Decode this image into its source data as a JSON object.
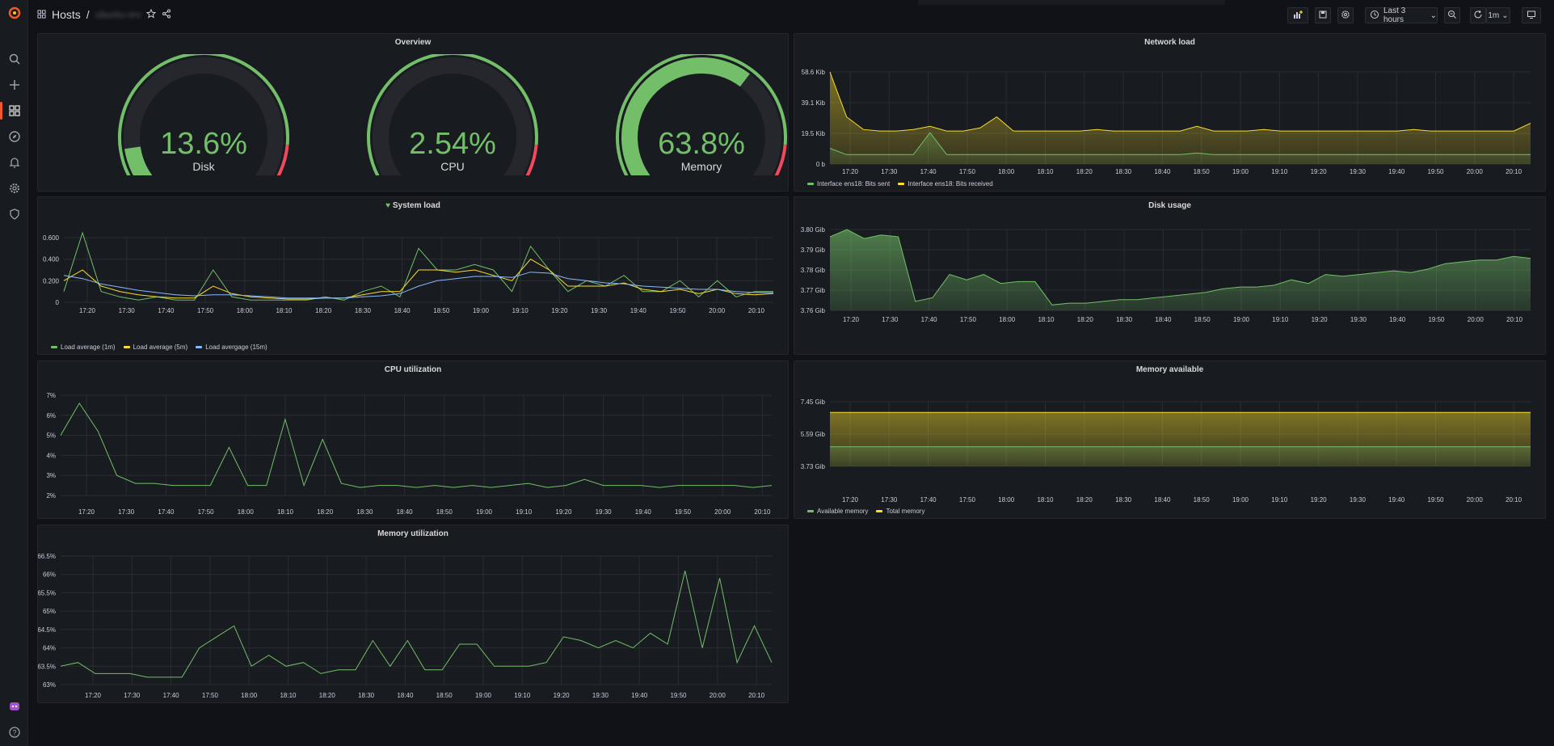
{
  "breadcrumb": {
    "section": "Hosts",
    "separator": "/",
    "dashboard": "ubuntu-srv"
  },
  "toolbar": {
    "time_range": "Last 3 hours",
    "refresh": "1m"
  },
  "icons": [
    "grafana-logo-icon",
    "search-icon",
    "plus-icon",
    "dashboards-icon",
    "explore-icon",
    "alerting-icon",
    "settings-icon",
    "shield-icon",
    "avatar-icon",
    "help-icon",
    "grid-icon",
    "star-icon",
    "share-icon",
    "add-panel-icon",
    "save-icon",
    "gear-icon",
    "clock-icon",
    "zoom-out-icon",
    "refresh-icon",
    "tv-icon"
  ],
  "colors": {
    "green": "#73bf69",
    "yellow": "#fade2a",
    "blue": "#8ab8ff",
    "red": "#f2495c",
    "accent": "#f05a28"
  },
  "overview": {
    "title": "Overview",
    "gauges": [
      {
        "label": "Disk",
        "value": "13.6%",
        "fraction": 0.136
      },
      {
        "label": "CPU",
        "value": "2.54%",
        "fraction": 0.0254
      },
      {
        "label": "Memory",
        "value": "63.8%",
        "fraction": 0.638
      }
    ]
  },
  "panels": {
    "network": {
      "title": "Network load",
      "ylabels": [
        "58.6 Kib",
        "39.1 Kib",
        "19.5 Kib",
        "0 b"
      ],
      "xlabels": [
        "17:20",
        "17:30",
        "17:40",
        "17:50",
        "18:00",
        "18:10",
        "18:20",
        "18:30",
        "18:40",
        "18:50",
        "19:00",
        "19:10",
        "19:20",
        "19:30",
        "19:40",
        "19:50",
        "20:00",
        "20:10"
      ],
      "legend": [
        "Interface ens18: Bits sent",
        "Interface ens18: Bits received"
      ]
    },
    "sysload": {
      "title": "System load",
      "ylabels": [
        "0.600",
        "0.400",
        "0.200",
        "0"
      ],
      "xlabels": [
        "17:20",
        "17:30",
        "17:40",
        "17:50",
        "18:00",
        "18:10",
        "18:20",
        "18:30",
        "18:40",
        "18:50",
        "19:00",
        "19:10",
        "19:20",
        "19:30",
        "19:40",
        "19:50",
        "20:00",
        "20:10"
      ],
      "legend": [
        "Load average (1m)",
        "Load average (5m)",
        "Load avergage (15m)"
      ]
    },
    "disk": {
      "title": "Disk usage",
      "ylabels": [
        "3.80 Gib",
        "3.79 Gib",
        "3.78 Gib",
        "3.77 Gib",
        "3.76 Gib"
      ],
      "xlabels": [
        "17:20",
        "17:30",
        "17:40",
        "17:50",
        "18:00",
        "18:10",
        "18:20",
        "18:30",
        "18:40",
        "18:50",
        "19:00",
        "19:10",
        "19:20",
        "19:30",
        "19:40",
        "19:50",
        "20:00",
        "20:10"
      ]
    },
    "cpu": {
      "title": "CPU utilization",
      "ylabels": [
        "7%",
        "6%",
        "5%",
        "4%",
        "3%",
        "2%"
      ],
      "xlabels": [
        "17:20",
        "17:30",
        "17:40",
        "17:50",
        "18:00",
        "18:10",
        "18:20",
        "18:30",
        "18:40",
        "18:50",
        "19:00",
        "19:10",
        "19:20",
        "19:30",
        "19:40",
        "19:50",
        "20:00",
        "20:10"
      ]
    },
    "memavail": {
      "title": "Memory available",
      "ylabels": [
        "7.45 Gib",
        "5.59 Gib",
        "3.73 Gib"
      ],
      "xlabels": [
        "17:20",
        "17:30",
        "17:40",
        "17:50",
        "18:00",
        "18:10",
        "18:20",
        "18:30",
        "18:40",
        "18:50",
        "19:00",
        "19:10",
        "19:20",
        "19:30",
        "19:40",
        "19:50",
        "20:00",
        "20:10"
      ],
      "legend": [
        "Available memory",
        "Total memory"
      ]
    },
    "memutil": {
      "title": "Memory utilization",
      "ylabels": [
        "66.5%",
        "66%",
        "65.5%",
        "65%",
        "64.5%",
        "64%",
        "63.5%",
        "63%"
      ],
      "xlabels": [
        "17:20",
        "17:30",
        "17:40",
        "17:50",
        "18:00",
        "18:10",
        "18:20",
        "18:30",
        "18:40",
        "18:50",
        "19:00",
        "19:10",
        "19:20",
        "19:30",
        "19:40",
        "19:50",
        "20:00",
        "20:10"
      ]
    }
  },
  "chart_data": [
    {
      "type": "area",
      "title": "Network load",
      "unit": "Kib",
      "series": [
        {
          "name": "Interface ens18: Bits received",
          "values": [
            58.6,
            30,
            22,
            21,
            21,
            22,
            24,
            21,
            21,
            23,
            30,
            21,
            21,
            21,
            21,
            21,
            22,
            21,
            21,
            21,
            21,
            21,
            24,
            21,
            21,
            21,
            22,
            21,
            21,
            21,
            21,
            21,
            21,
            21,
            21,
            22,
            21,
            21,
            21,
            21,
            21,
            21,
            26
          ]
        },
        {
          "name": "Interface ens18: Bits sent",
          "values": [
            10,
            6,
            6,
            6,
            6,
            6,
            20,
            6,
            6,
            6,
            6,
            6,
            6,
            6,
            6,
            6,
            6,
            6,
            6,
            6,
            6,
            6,
            7,
            6,
            6,
            6,
            6,
            6,
            6,
            6,
            6,
            6,
            6,
            6,
            6,
            6,
            6,
            6,
            6,
            6,
            6,
            6,
            6
          ]
        }
      ]
    },
    {
      "type": "line",
      "title": "System load",
      "series": [
        {
          "name": "Load average (1m)",
          "values": [
            0.1,
            0.68,
            0.1,
            0.05,
            0.02,
            0.05,
            0.02,
            0.02,
            0.3,
            0.05,
            0.02,
            0.02,
            0.02,
            0.02,
            0.05,
            0.02,
            0.1,
            0.15,
            0.05,
            0.5,
            0.3,
            0.3,
            0.35,
            0.3,
            0.1,
            0.52,
            0.3,
            0.1,
            0.2,
            0.15,
            0.25,
            0.1,
            0.1,
            0.2,
            0.05,
            0.2,
            0.05,
            0.1,
            0.1
          ]
        },
        {
          "name": "Load average (5m)",
          "values": [
            0.2,
            0.3,
            0.15,
            0.1,
            0.07,
            0.05,
            0.04,
            0.04,
            0.15,
            0.08,
            0.05,
            0.04,
            0.03,
            0.03,
            0.04,
            0.04,
            0.07,
            0.1,
            0.1,
            0.3,
            0.3,
            0.28,
            0.3,
            0.25,
            0.2,
            0.4,
            0.3,
            0.15,
            0.15,
            0.15,
            0.18,
            0.12,
            0.1,
            0.12,
            0.08,
            0.12,
            0.08,
            0.07,
            0.08
          ]
        },
        {
          "name": "Load avergage (15m)",
          "values": [
            0.25,
            0.22,
            0.17,
            0.14,
            0.11,
            0.09,
            0.07,
            0.06,
            0.07,
            0.07,
            0.06,
            0.05,
            0.04,
            0.04,
            0.04,
            0.04,
            0.05,
            0.06,
            0.08,
            0.15,
            0.2,
            0.22,
            0.24,
            0.24,
            0.23,
            0.28,
            0.27,
            0.22,
            0.2,
            0.18,
            0.17,
            0.15,
            0.14,
            0.13,
            0.12,
            0.12,
            0.1,
            0.09,
            0.09
          ]
        }
      ]
    },
    {
      "type": "area",
      "title": "Disk usage",
      "unit": "Gib",
      "series": [
        {
          "name": "",
          "values": [
            3.796,
            3.8,
            3.795,
            3.797,
            3.796,
            3.76,
            3.762,
            3.775,
            3.772,
            3.775,
            3.77,
            3.771,
            3.771,
            3.758,
            3.759,
            3.759,
            3.76,
            3.761,
            3.761,
            3.762,
            3.763,
            3.764,
            3.765,
            3.767,
            3.768,
            3.768,
            3.769,
            3.772,
            3.77,
            3.775,
            3.774,
            3.775,
            3.776,
            3.777,
            3.776,
            3.778,
            3.781,
            3.782,
            3.783,
            3.783,
            3.785,
            3.784
          ]
        }
      ]
    },
    {
      "type": "line",
      "title": "CPU utilization",
      "unit": "%",
      "series": [
        {
          "name": "",
          "values": [
            5,
            6.6,
            5.2,
            3,
            2.6,
            2.6,
            2.5,
            2.5,
            2.5,
            4.4,
            2.5,
            2.5,
            5.8,
            2.5,
            4.8,
            2.6,
            2.4,
            2.5,
            2.5,
            2.4,
            2.5,
            2.4,
            2.5,
            2.4,
            2.5,
            2.6,
            2.4,
            2.5,
            2.8,
            2.5,
            2.5,
            2.5,
            2.4,
            2.5,
            2.5,
            2.5,
            2.5,
            2.4,
            2.5
          ]
        }
      ]
    },
    {
      "type": "area",
      "title": "Memory available",
      "unit": "Gib",
      "series": [
        {
          "name": "Available memory",
          "values": [
            2.7,
            2.7,
            2.7,
            2.7,
            2.7,
            2.7,
            2.7,
            2.7,
            2.7,
            2.7,
            2.7,
            2.7,
            2.7,
            2.7,
            2.7,
            2.7,
            2.7,
            2.7,
            2.7,
            2.7
          ]
        },
        {
          "name": "Total memory",
          "values": [
            7.45,
            7.45,
            7.45,
            7.45,
            7.45,
            7.45,
            7.45,
            7.45,
            7.45,
            7.45,
            7.45,
            7.45,
            7.45,
            7.45,
            7.45,
            7.45,
            7.45,
            7.45,
            7.45,
            7.45
          ]
        }
      ]
    },
    {
      "type": "line",
      "title": "Memory utilization",
      "unit": "%",
      "series": [
        {
          "name": "",
          "values": [
            63.5,
            63.6,
            63.3,
            63.3,
            63.3,
            63.2,
            63.2,
            63.2,
            64,
            64.3,
            64.6,
            63.5,
            63.8,
            63.5,
            63.6,
            63.3,
            63.4,
            63.4,
            64.2,
            63.5,
            64.2,
            63.4,
            63.4,
            64.1,
            64.1,
            63.5,
            63.5,
            63.5,
            63.6,
            64.3,
            64.2,
            64.0,
            64.2,
            64.0,
            64.4,
            64.1,
            66.1,
            64.0,
            65.9,
            63.6,
            64.6,
            63.6
          ]
        }
      ]
    }
  ]
}
